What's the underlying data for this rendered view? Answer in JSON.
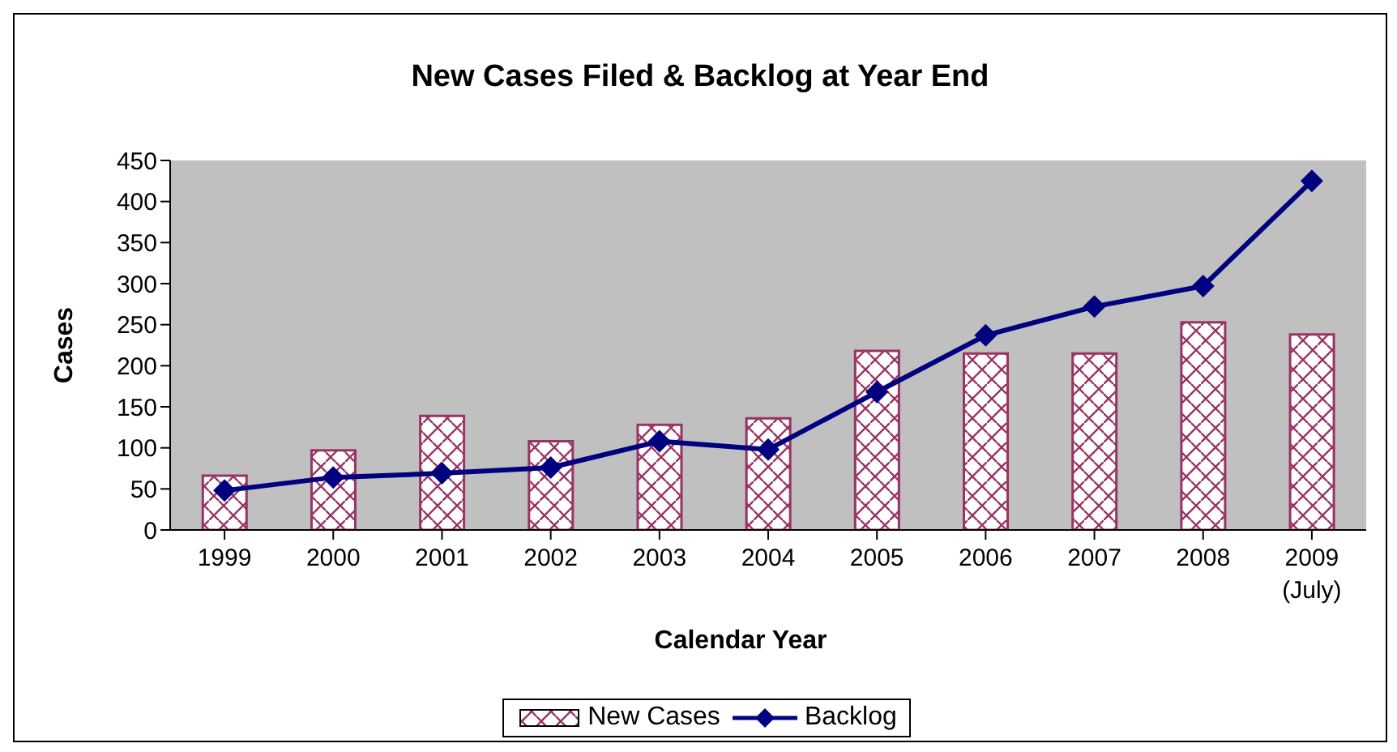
{
  "chart_data": {
    "type": "bar",
    "title": "New Cases Filed & Backlog at Year End",
    "xlabel": "Calendar Year",
    "ylabel": "Cases",
    "categories": [
      "1999",
      "2000",
      "2001",
      "2002",
      "2003",
      "2004",
      "2005",
      "2006",
      "2007",
      "2008",
      "2009\n(July)"
    ],
    "series": [
      {
        "name": "New Cases",
        "type": "bar",
        "color": "#993366",
        "values": [
          66,
          97,
          139,
          108,
          128,
          136,
          218,
          215,
          215,
          253,
          238
        ]
      },
      {
        "name": "Backlog",
        "type": "line",
        "color": "#000080",
        "marker": "diamond",
        "values": [
          48,
          64,
          69,
          76,
          108,
          98,
          168,
          237,
          272,
          297,
          425
        ]
      }
    ],
    "ylim": [
      0,
      450
    ],
    "yticks": [
      0,
      50,
      100,
      150,
      200,
      250,
      300,
      350,
      400,
      450
    ],
    "grid": false,
    "legend": "bottom"
  }
}
